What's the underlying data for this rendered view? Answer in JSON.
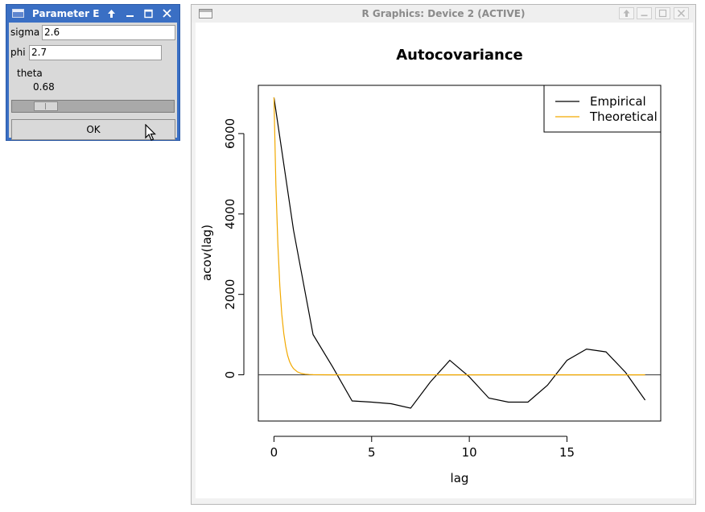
{
  "parameter_dialog": {
    "title": "Parameter E",
    "icons": {
      "app": "window-icon",
      "shade": "arrow-up-icon",
      "minimize": "minimize-icon",
      "maximize": "maximize-icon",
      "close": "close-icon"
    },
    "sigma_label": "sigma",
    "sigma_value": "2.6",
    "phi_label": "phi",
    "phi_value": "2.7",
    "theta_label": "theta",
    "theta_value": "0.68",
    "theta_slider_fraction": 0.16,
    "ok_label": "OK"
  },
  "graphics_window": {
    "title": "R Graphics: Device 2 (ACTIVE)",
    "icons": {
      "app": "window-icon",
      "shade": "arrow-up-icon",
      "minimize": "minimize-icon",
      "maximize": "maximize-icon",
      "close": "close-icon"
    }
  },
  "chart_data": {
    "type": "line",
    "title": "Autocovariance",
    "xlabel": "lag",
    "ylabel": "acov(lag)",
    "xlim": [
      -0.8,
      19.8
    ],
    "ylim": [
      -1150,
      7200
    ],
    "x_ticks": [
      0,
      5,
      10,
      15
    ],
    "y_ticks": [
      0,
      2000,
      4000,
      6000
    ],
    "grid": false,
    "legend": {
      "placement": "top-right"
    },
    "reference_line": {
      "y": 0,
      "color": "#333333"
    },
    "series": [
      {
        "name": "Empirical",
        "color": "#000000",
        "x": [
          0,
          1,
          2,
          3,
          4,
          5,
          6,
          7,
          8,
          9,
          10,
          11,
          12,
          13,
          14,
          15,
          16,
          17,
          18,
          19
        ],
        "y": [
          6900,
          3600,
          1000,
          200,
          -650,
          -680,
          -720,
          -830,
          -180,
          360,
          -50,
          -580,
          -680,
          -680,
          -260,
          360,
          640,
          570,
          60,
          -630
        ]
      },
      {
        "name": "Theoretical",
        "color": "#f2a900",
        "x": [
          0,
          0.1,
          0.2,
          0.3,
          0.4,
          0.5,
          0.6,
          0.7,
          0.8,
          0.9,
          1.0,
          1.2,
          1.4,
          1.6,
          1.8,
          2.0,
          2.5,
          3.0,
          4.0,
          5,
          6,
          7,
          8,
          9,
          10,
          11,
          12,
          13,
          14,
          15,
          16,
          17,
          18,
          19
        ],
        "y": [
          6900,
          4720,
          3230,
          2210,
          1510,
          1030,
          710,
          480,
          330,
          226,
          155,
          73,
          34,
          16,
          7,
          3,
          1,
          0,
          0,
          0,
          0,
          0,
          0,
          0,
          0,
          0,
          0,
          0,
          0,
          0,
          0,
          0,
          0,
          0
        ]
      }
    ]
  }
}
